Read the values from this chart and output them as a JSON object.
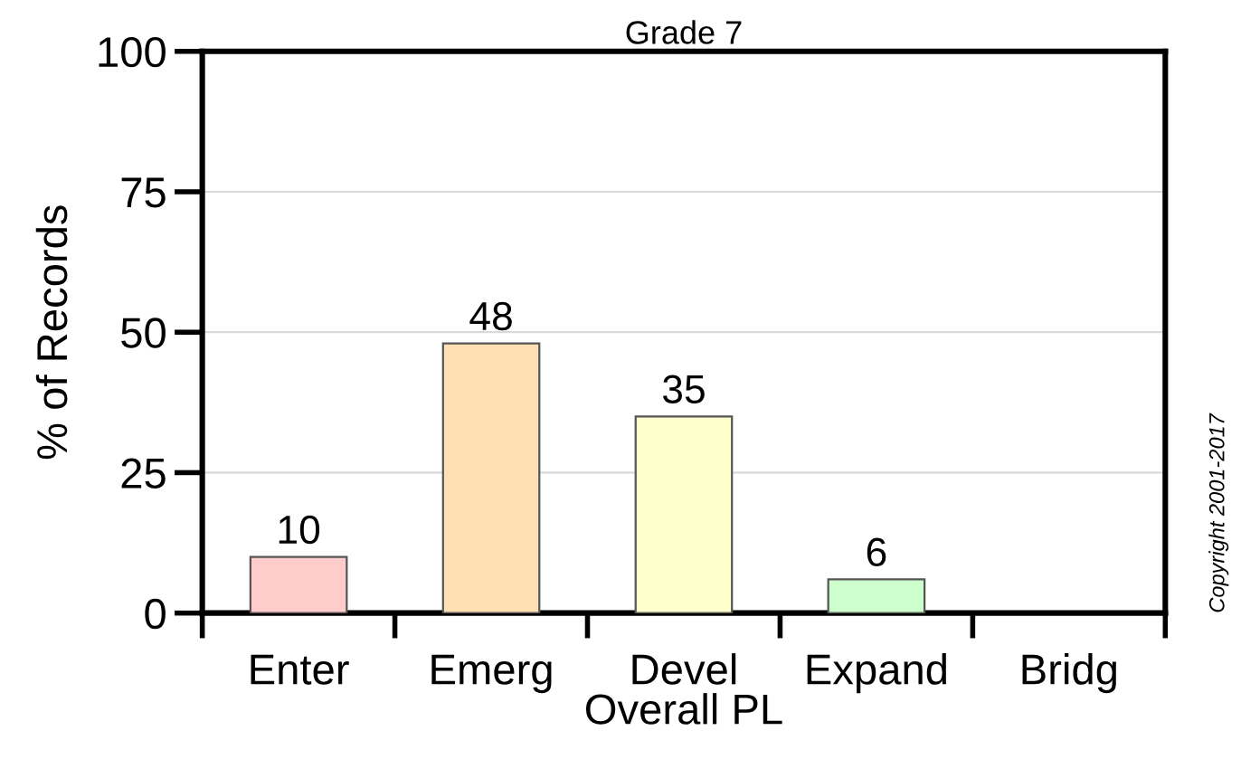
{
  "chart_data": {
    "type": "bar",
    "title": "Grade 7",
    "xlabel": "Overall PL",
    "ylabel": "% of Records",
    "categories": [
      "Enter",
      "Emerg",
      "Devel",
      "Expand",
      "Bridg"
    ],
    "values": [
      10,
      48,
      35,
      6,
      null
    ],
    "colors": [
      "#ffcccc",
      "#ffe0b2",
      "#ffffcc",
      "#ccffcc",
      null
    ],
    "value_labels": [
      "10",
      "48",
      "35",
      "6",
      null
    ],
    "ylim": [
      0,
      100
    ],
    "yticks": [
      0,
      25,
      50,
      75,
      100
    ],
    "grid": "y",
    "annotations": [
      "Copyright 2001-2017"
    ]
  }
}
